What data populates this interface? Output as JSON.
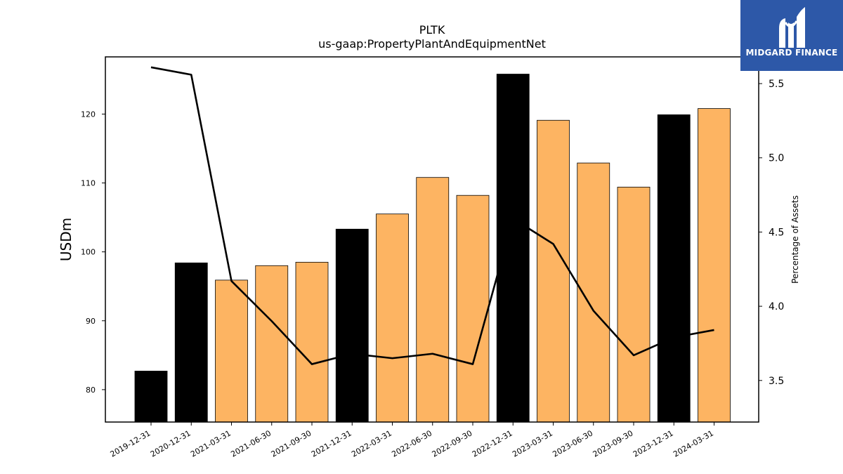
{
  "chart_data": {
    "type": "bar",
    "title": "PLTK",
    "subtitle": "us-gaap:PropertyPlantAndEquipmentNet",
    "ylabel": "USDm",
    "y2label": "Percentage of Assets",
    "categories": [
      "2019-12-31",
      "2020-12-31",
      "2021-03-31",
      "2021-06-30",
      "2021-09-30",
      "2021-12-31",
      "2022-03-31",
      "2022-06-30",
      "2022-09-30",
      "2022-12-31",
      "2023-03-31",
      "2023-06-30",
      "2023-09-30",
      "2023-12-31",
      "2024-03-31"
    ],
    "series": [
      {
        "type": "bar",
        "values": [
          82.7,
          98.4,
          95.9,
          98.0,
          98.5,
          103.3,
          105.5,
          110.8,
          108.2,
          125.8,
          119.1,
          112.9,
          109.4,
          119.9,
          120.8
        ],
        "is_annual": [
          true,
          true,
          false,
          false,
          false,
          true,
          false,
          false,
          false,
          true,
          false,
          false,
          false,
          true,
          false
        ]
      },
      {
        "type": "line",
        "axis": "right",
        "values": [
          5.61,
          5.56,
          4.17,
          3.9,
          3.61,
          3.68,
          3.65,
          3.68,
          3.61,
          4.59,
          4.42,
          3.97,
          3.67,
          3.79,
          3.84
        ]
      }
    ],
    "ylim": [
      75.3,
      128.3
    ],
    "y2lim": [
      3.22,
      5.68
    ],
    "yticks": [
      80,
      90,
      100,
      110,
      120
    ],
    "y2ticks": [
      3.5,
      4.0,
      4.5,
      5.0,
      5.5
    ],
    "grid": false,
    "colors": {
      "annual": "#000000",
      "quarter": "#fdb462",
      "line": "#000000"
    }
  },
  "logo": {
    "text": "MIDGARD FINANCE",
    "bg": "#2d58a8"
  }
}
